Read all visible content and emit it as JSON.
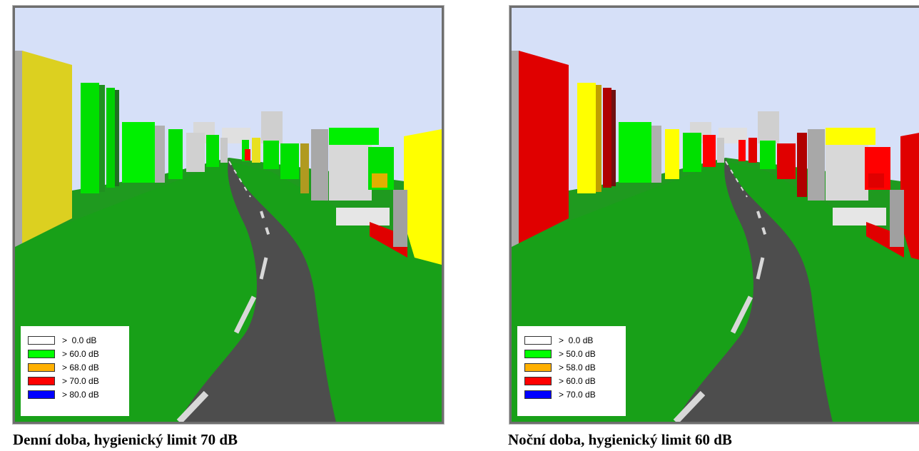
{
  "panels": [
    {
      "caption": "Denní doba, hygienický limit 70 dB",
      "legend": [
        {
          "label": ">  0.0 dB",
          "color": "#ffffff"
        },
        {
          "label": "> 60.0 dB",
          "color": "#00ff00"
        },
        {
          "label": "> 68.0 dB",
          "color": "#ffb000"
        },
        {
          "label": "> 70.0 dB",
          "color": "#ff0000"
        },
        {
          "label": "> 80.0 dB",
          "color": "#0000ff"
        }
      ]
    },
    {
      "caption": "Noční doba, hygienický limit 60 dB",
      "legend": [
        {
          "label": ">  0.0 dB",
          "color": "#ffffff"
        },
        {
          "label": "> 50.0 dB",
          "color": "#00ff00"
        },
        {
          "label": "> 58.0 dB",
          "color": "#ffb000"
        },
        {
          "label": "> 60.0 dB",
          "color": "#ff0000"
        },
        {
          "label": "> 70.0 dB",
          "color": "#0000ff"
        }
      ]
    }
  ],
  "colors": {
    "sky": "#d6e0f8",
    "grass": "#1f9a1f",
    "road": "#4d4d4d",
    "road_marking": "#d8d8d8"
  }
}
